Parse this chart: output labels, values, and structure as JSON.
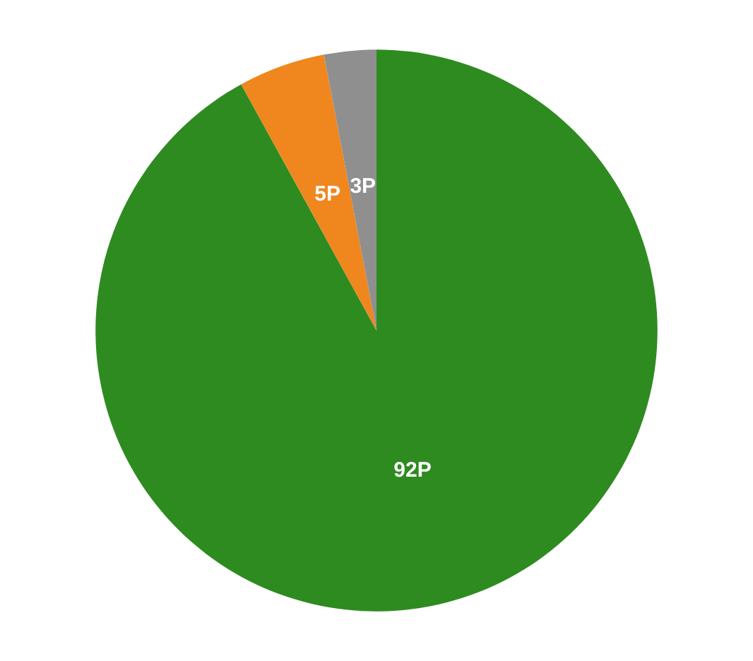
{
  "chart_data": {
    "type": "pie",
    "categories": [
      null,
      null,
      null
    ],
    "values": [
      92,
      5,
      3
    ],
    "colors": [
      "#2e8b20",
      "#f0861e",
      "#8f8f8f"
    ],
    "value_labels": [
      "92P",
      "5P",
      "3P"
    ]
  }
}
